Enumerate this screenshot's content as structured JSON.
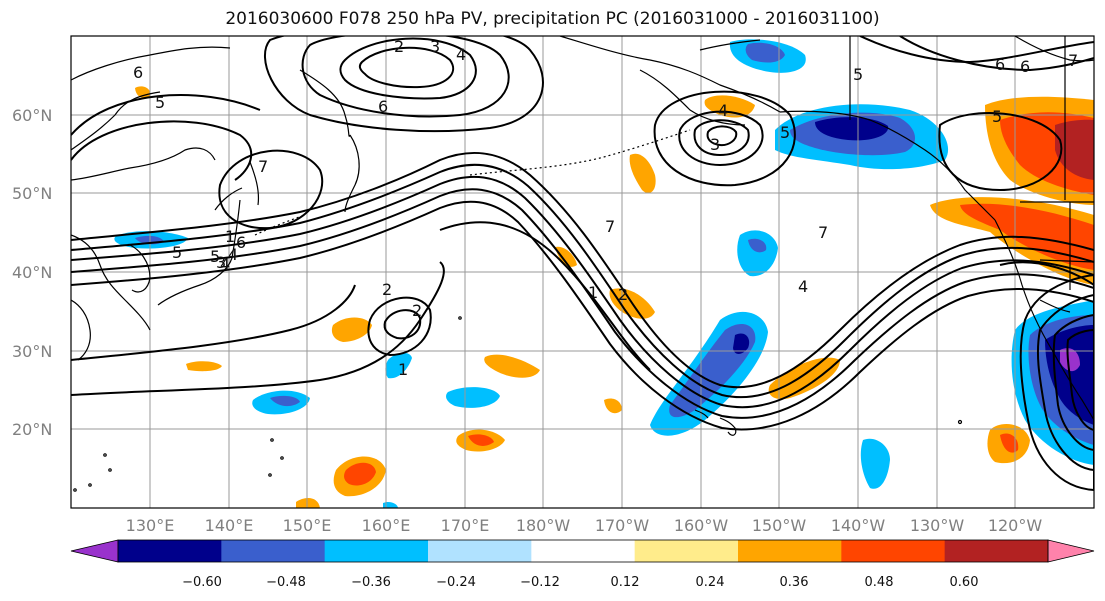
{
  "title": "2016030600 F078 250 hPa PV, precipitation PC (2016031000 - 2016031100)",
  "lat_labels": [
    "60°N",
    "50°N",
    "40°N",
    "30°N",
    "20°N"
  ],
  "lon_labels": [
    "130°E",
    "140°E",
    "150°E",
    "160°E",
    "170°E",
    "180°W",
    "170°W",
    "160°W",
    "150°W",
    "140°W",
    "130°W",
    "120°W"
  ],
  "contour_labels": [
    "2",
    "3",
    "4",
    "5",
    "6",
    "7",
    "1",
    "2",
    "3",
    "4",
    "5",
    "6",
    "7",
    "1",
    "2",
    "3",
    "4",
    "5",
    "6",
    "1",
    "2",
    "4",
    "5",
    "6",
    "7",
    "5",
    "6",
    "7",
    "4",
    "5"
  ],
  "colorbar": {
    "ticks": [
      "−0.60",
      "−0.48",
      "−0.36",
      "−0.24",
      "−0.12",
      "0.12",
      "0.24",
      "0.36",
      "0.48",
      "0.60"
    ],
    "colors": [
      "#9932CC",
      "#00008B",
      "#3A5FCD",
      "#00BFFF",
      "#B0E2FF",
      "#FFFFFF",
      "#FFEC8B",
      "#FFA500",
      "#FF4500",
      "#B22222",
      "#FF82AB"
    ]
  },
  "palette": {
    "grid": "#999999",
    "coast": "#000000"
  }
}
